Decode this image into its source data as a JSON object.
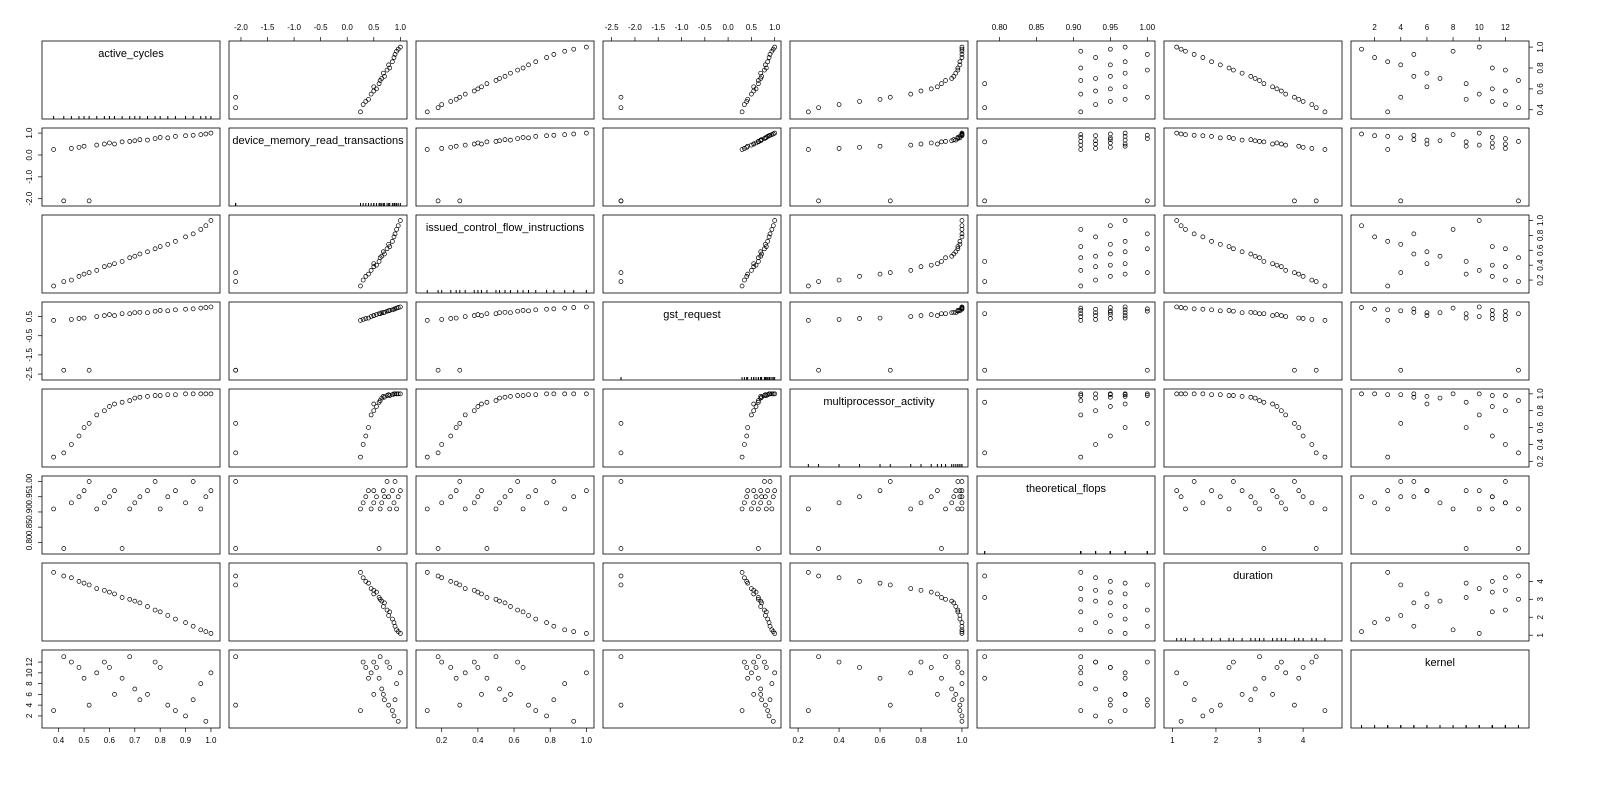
{
  "chart_data": {
    "type": "scatter_matrix",
    "point_color": "#000000",
    "border_color": "#000000",
    "variables": [
      {
        "name": "active_cycles",
        "xlim": [
          0.35,
          1.02
        ],
        "ylim": [
          0.35,
          1.02
        ],
        "xticks": [
          0.4,
          0.5,
          0.6,
          0.7,
          0.8,
          0.9,
          {
            "value": 1,
            "label": "1.0"
          }
        ],
        "yticks": [
          0.4,
          0.6,
          0.8,
          {
            "value": 1,
            "label": "1.0"
          }
        ],
        "values": [
          0.38,
          0.42,
          0.45,
          0.48,
          0.5,
          0.52,
          0.55,
          0.58,
          0.6,
          0.62,
          0.65,
          0.68,
          0.7,
          0.72,
          0.75,
          0.78,
          0.8,
          0.83,
          0.86,
          0.9,
          0.93,
          0.96,
          0.98,
          1.0
        ]
      },
      {
        "name": "device_memory_read_transactions",
        "xlim": [
          -2.15,
          1.05
        ],
        "ylim": [
          -2.15,
          1.05
        ],
        "xticks": [
          {
            "value": -2,
            "label": "-2.0"
          },
          -1.5,
          {
            "value": -1,
            "label": "-1.0"
          },
          -0.5,
          {
            "value": 0,
            "label": "0.0"
          },
          0.5,
          {
            "value": 1,
            "label": "1.0"
          }
        ],
        "yticks": [
          {
            "value": -2,
            "label": "-2.0"
          },
          {
            "value": -1,
            "label": "-1.0"
          },
          {
            "value": 0,
            "label": "0.0"
          },
          {
            "value": 1,
            "label": "1.0"
          }
        ],
        "values": [
          0.25,
          -2.1,
          0.3,
          0.35,
          0.4,
          -2.1,
          0.45,
          0.5,
          0.55,
          0.5,
          0.6,
          0.62,
          0.65,
          0.7,
          0.68,
          0.75,
          0.8,
          0.78,
          0.85,
          0.88,
          0.9,
          0.93,
          0.96,
          1.0
        ]
      },
      {
        "name": "issued_control_flow_instructions",
        "xlim": [
          0.08,
          1.02
        ],
        "ylim": [
          0.08,
          1.02
        ],
        "xticks": [
          0.2,
          0.4,
          0.6,
          0.8,
          {
            "value": 1,
            "label": "1.0"
          }
        ],
        "yticks": [
          0.2,
          0.4,
          0.6,
          0.8,
          {
            "value": 1,
            "label": "1.0"
          }
        ],
        "values": [
          0.12,
          0.18,
          0.2,
          0.25,
          0.28,
          0.3,
          0.33,
          0.38,
          0.4,
          0.42,
          0.45,
          0.5,
          0.52,
          0.55,
          0.58,
          0.62,
          0.65,
          0.68,
          0.72,
          0.78,
          0.82,
          0.88,
          0.93,
          1.0
        ]
      },
      {
        "name": "gst_request",
        "xlim": [
          -2.6,
          1.05
        ],
        "ylim": [
          -2.6,
          1.05
        ],
        "xticks": [
          -2.5,
          {
            "value": -2,
            "label": "-2.0"
          },
          -1.5,
          {
            "value": -1,
            "label": "-1.0"
          },
          -0.5,
          {
            "value": 0,
            "label": "0.0"
          },
          0.5,
          {
            "value": 1,
            "label": "1.0"
          }
        ],
        "yticks": [
          -2.5,
          -1.5,
          -0.5,
          0.5
        ],
        "values": [
          0.3,
          -2.3,
          0.35,
          0.4,
          0.42,
          -2.3,
          0.5,
          0.55,
          0.6,
          0.55,
          0.65,
          0.65,
          0.7,
          0.72,
          0.7,
          0.78,
          0.82,
          0.8,
          0.85,
          0.88,
          0.9,
          0.94,
          0.97,
          1.0
        ]
      },
      {
        "name": "multiprocessor_activity",
        "xlim": [
          0.18,
          1.01
        ],
        "ylim": [
          0.18,
          1.01
        ],
        "xticks": [
          0.2,
          0.4,
          0.6,
          0.8,
          {
            "value": 1,
            "label": "1.0"
          }
        ],
        "yticks": [
          0.2,
          0.4,
          0.6,
          0.8,
          {
            "value": 1,
            "label": "1.0"
          }
        ],
        "values": [
          0.25,
          0.3,
          0.4,
          0.5,
          0.6,
          0.65,
          0.75,
          0.8,
          0.85,
          0.88,
          0.9,
          0.92,
          0.95,
          0.96,
          0.97,
          0.98,
          0.98,
          0.99,
          0.99,
          1.0,
          1.0,
          1.0,
          1.0,
          1.0
        ]
      },
      {
        "name": "theoretical_flops",
        "xlim": [
          0.775,
          1.005
        ],
        "ylim": [
          0.775,
          1.005
        ],
        "xticks": [
          {
            "value": 0.8,
            "label": "0.80"
          },
          0.85,
          {
            "value": 0.9,
            "label": "0.90"
          },
          0.95,
          {
            "value": 1,
            "label": "1.00"
          }
        ],
        "yticks": [
          {
            "value": 0.8,
            "label": "0.80"
          },
          0.85,
          {
            "value": 0.9,
            "label": "0.90"
          },
          0.95,
          {
            "value": 1,
            "label": "1.00"
          }
        ],
        "values": [
          0.91,
          0.78,
          0.93,
          0.95,
          0.97,
          1.0,
          0.91,
          0.93,
          0.95,
          0.97,
          0.78,
          0.91,
          0.93,
          0.95,
          0.97,
          1.0,
          0.91,
          0.95,
          0.97,
          0.93,
          1.0,
          0.91,
          0.95,
          0.97
        ]
      },
      {
        "name": "duration",
        "xlim": [
          0.9,
          4.8
        ],
        "ylim": [
          0.9,
          4.8
        ],
        "xticks": [
          1,
          2,
          3,
          4
        ],
        "yticks": [
          1,
          2,
          3,
          4
        ],
        "values": [
          4.5,
          4.3,
          4.2,
          4.0,
          3.9,
          3.8,
          3.6,
          3.5,
          3.4,
          3.3,
          3.1,
          3.0,
          2.9,
          2.8,
          2.6,
          2.4,
          2.3,
          2.1,
          1.9,
          1.7,
          1.5,
          1.3,
          1.2,
          1.1
        ]
      },
      {
        "name": "kernel",
        "xlim": [
          0.5,
          13.5
        ],
        "ylim": [
          0.5,
          13.5
        ],
        "xticks": [
          2,
          4,
          6,
          8,
          10,
          12
        ],
        "yticks": [
          2,
          4,
          6,
          8,
          10,
          12
        ],
        "values": [
          3,
          13,
          12,
          11,
          9,
          4,
          10,
          12,
          11,
          6,
          9,
          13,
          7,
          5,
          6,
          12,
          11,
          4,
          3,
          2,
          5,
          8,
          1,
          10
        ]
      }
    ]
  }
}
